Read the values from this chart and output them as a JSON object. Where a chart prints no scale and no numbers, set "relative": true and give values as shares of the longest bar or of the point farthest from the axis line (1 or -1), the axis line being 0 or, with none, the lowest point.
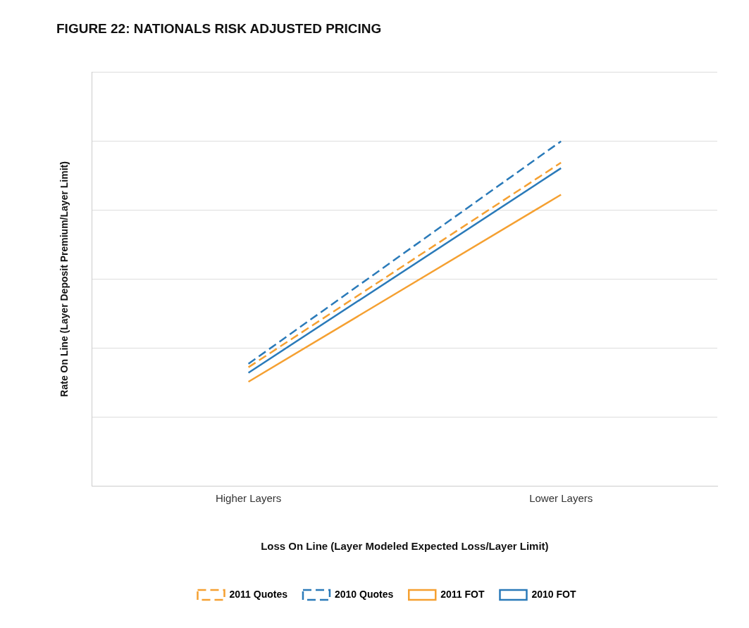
{
  "chart_data": {
    "type": "line",
    "title": "FIGURE 22: NATIONALS RISK ADJUSTED PRICING",
    "xlabel": "Loss On Line (Layer Modeled Expected Loss/Layer Limit)",
    "ylabel": "Rate On Line (Layer Deposit Premium/Layer Limit)",
    "categories": [
      "Higher Layers",
      "Lower Layers"
    ],
    "relative": true,
    "grid": "y",
    "legend": "bottom",
    "marker": "none",
    "series": [
      {
        "name": "2011 Quotes",
        "color": "#f5a031",
        "line_style": "dashed",
        "values": [
          0.344,
          0.938
        ]
      },
      {
        "name": "2010 Quotes",
        "color": "#2a7ab9",
        "line_style": "dashed",
        "values": [
          0.354,
          1
        ]
      },
      {
        "name": "2011 FOT",
        "color": "#f5a031",
        "line_style": "solid",
        "values": [
          0.302,
          0.845
        ]
      },
      {
        "name": "2010 FOT",
        "color": "#2a7ab9",
        "line_style": "solid",
        "values": [
          0.328,
          0.922
        ]
      }
    ]
  }
}
